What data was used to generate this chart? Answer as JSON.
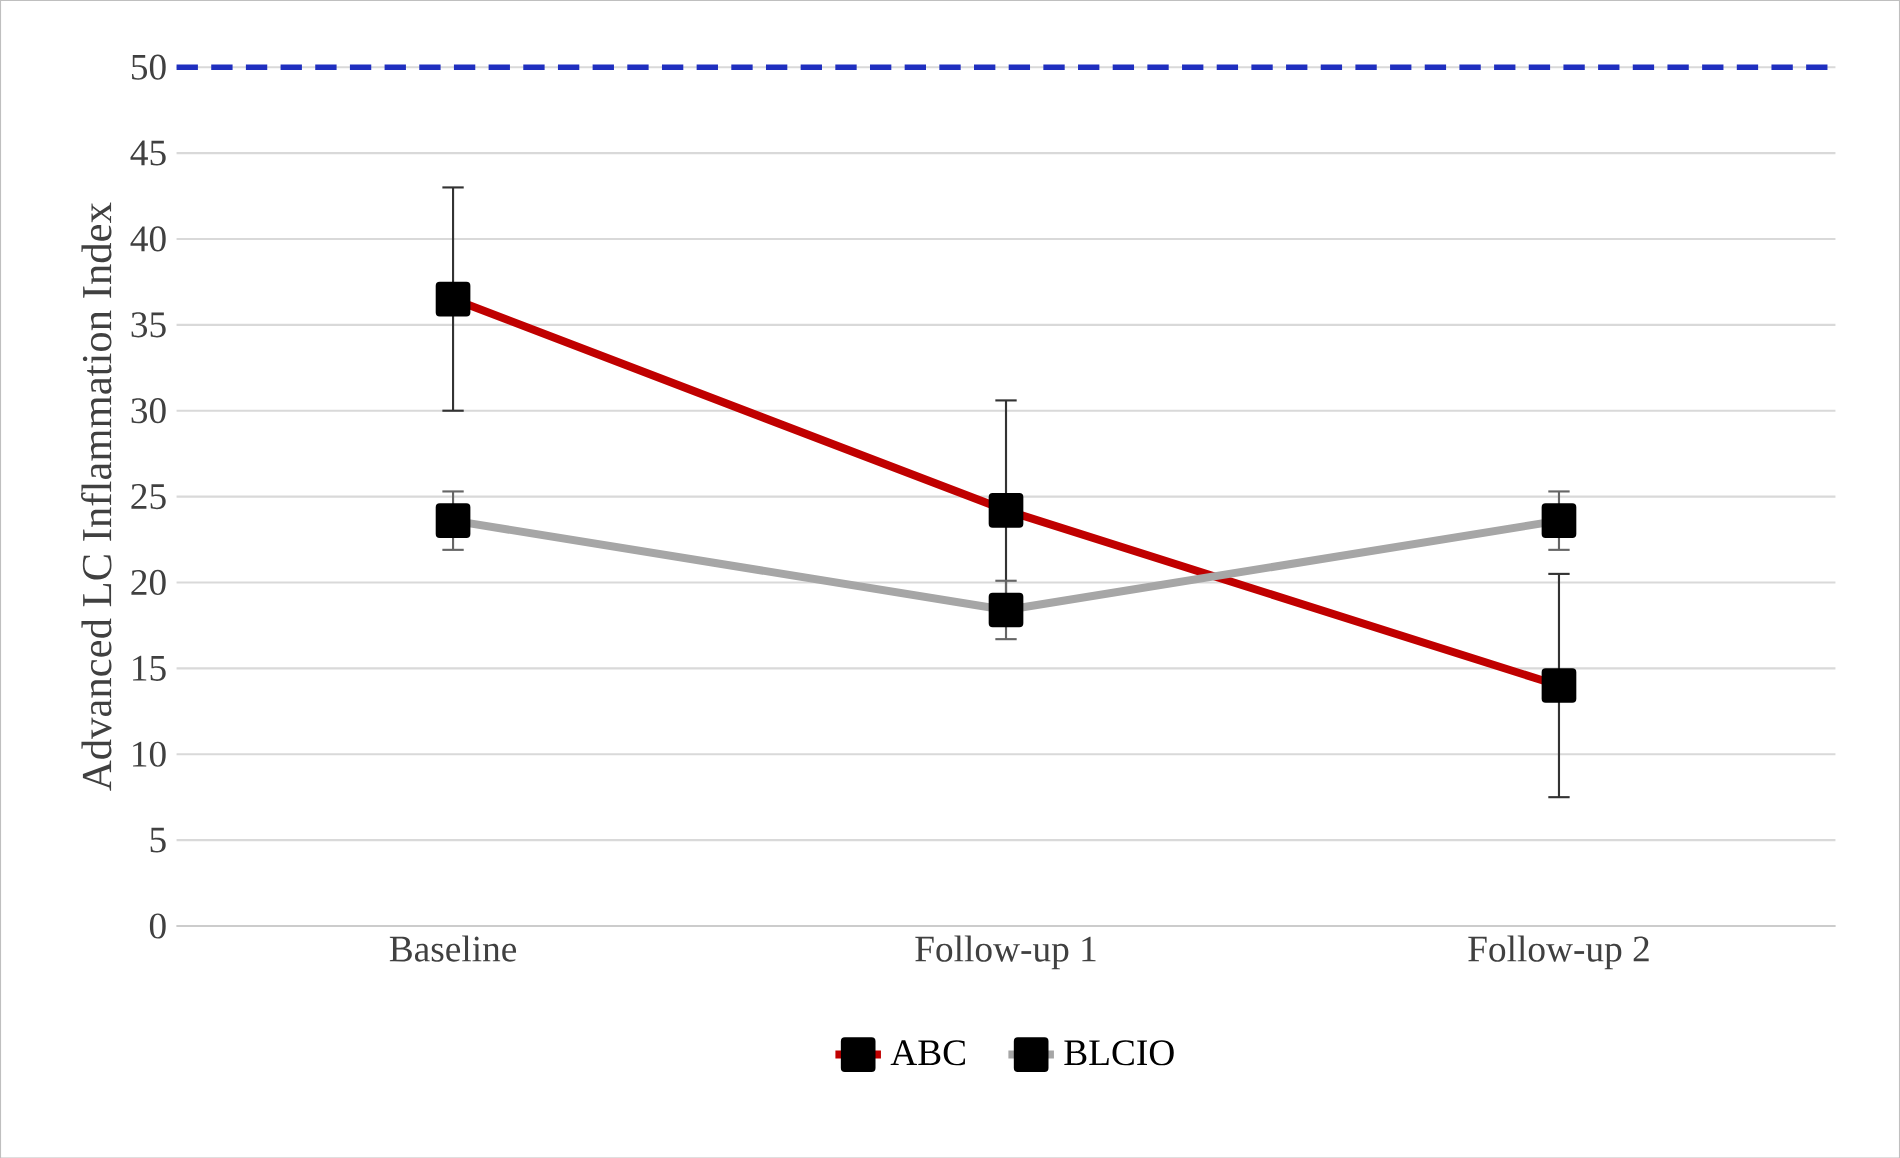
{
  "chart_data": {
    "type": "line",
    "ylabel": "Advanced  LC  Inflammation  Index",
    "categories": [
      "Baseline",
      "Follow-up 1",
      "Follow-up 2"
    ],
    "series": [
      {
        "name": "ABC",
        "color": "#c00000",
        "values": [
          36.5,
          24.2,
          14.0
        ],
        "errors": [
          6.5,
          6.4,
          6.5
        ]
      },
      {
        "name": "BLCIO",
        "color": "#a6a6a6",
        "values": [
          23.6,
          18.4,
          23.6
        ],
        "errors": [
          1.7,
          1.7,
          1.7
        ]
      }
    ],
    "ylim": [
      0,
      50
    ],
    "yticks": [
      0,
      5,
      10,
      15,
      20,
      25,
      30,
      35,
      40,
      45,
      50
    ],
    "ref_lines": [
      {
        "axis": "y",
        "value": 50,
        "color": "#1f2fbf",
        "line_style": "dashed"
      }
    ],
    "grid": "y",
    "legend": "bottom",
    "marker": "square",
    "line_style": "solid"
  }
}
